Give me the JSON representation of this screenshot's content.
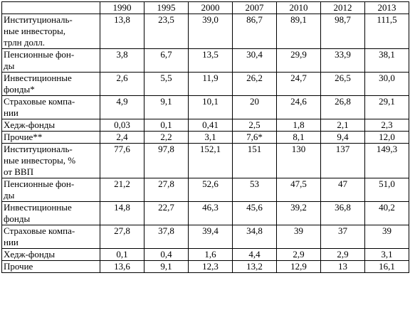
{
  "table": {
    "header": [
      "",
      "1990",
      "1995",
      "2000",
      "2007",
      "2010",
      "2012",
      "2013"
    ],
    "rows": [
      {
        "label": "Институциональ-\nные инвесторы,\nтрлн долл.",
        "values": [
          "13,8",
          "23,5",
          "39,0",
          "86,7",
          "89,1",
          "98,7",
          "111,5"
        ],
        "h": 3
      },
      {
        "label": "Пенсионные фон-\nды",
        "values": [
          "3,8",
          "6,7",
          "13,5",
          "30,4",
          "29,9",
          "33,9",
          "38,1"
        ],
        "h": 2
      },
      {
        "label": "Инвестиционные\nфонды*",
        "values": [
          "2,6",
          "5,5",
          "11,9",
          "26,2",
          "24,7",
          "26,5",
          "30,0"
        ],
        "h": 2
      },
      {
        "label": "Страховые компа-\nнии",
        "values": [
          "4,9",
          "9,1",
          "10,1",
          "20",
          "24,6",
          "26,8",
          "29,1"
        ],
        "h": 2
      },
      {
        "label": "Хедж-фонды",
        "values": [
          "0,03",
          "0,1",
          "0,41",
          "2,5",
          "1,8",
          "2,1",
          "2,3"
        ],
        "h": 1
      },
      {
        "label": "Прочие**",
        "values": [
          "2,4",
          "2,2",
          "3,1",
          "7,6*",
          "8,1",
          "9,4",
          "12,0"
        ],
        "h": 1
      },
      {
        "label": "Институциональ-\nные инвесторы, %\nот ВВП",
        "values": [
          "77,6",
          "97,8",
          "152,1",
          "151",
          "130",
          "137",
          "149,3"
        ],
        "h": 3
      },
      {
        "label": "Пенсионные фон-\nды",
        "values": [
          "21,2",
          "27,8",
          "52,6",
          "53",
          "47,5",
          "47",
          "51,0"
        ],
        "h": 2
      },
      {
        "label": "Инвестиционные\nфонды",
        "values": [
          "14,8",
          "22,7",
          "46,3",
          "45,6",
          "39,2",
          "36,8",
          "40,2"
        ],
        "h": 2
      },
      {
        "label": "Страховые компа-\nнии",
        "values": [
          "27,8",
          "37,8",
          "39,4",
          "34,8",
          "39",
          "37",
          "39"
        ],
        "h": 2
      },
      {
        "label": "Хедж-фонды",
        "values": [
          "0,1",
          "0,4",
          "1,6",
          "4,4",
          "2,9",
          "2,9",
          "3,1"
        ],
        "h": 1
      },
      {
        "label": "Прочие",
        "values": [
          "13,6",
          "9,1",
          "12,3",
          "13,2",
          "12,9",
          "13",
          "16,1"
        ],
        "h": 1
      }
    ]
  }
}
